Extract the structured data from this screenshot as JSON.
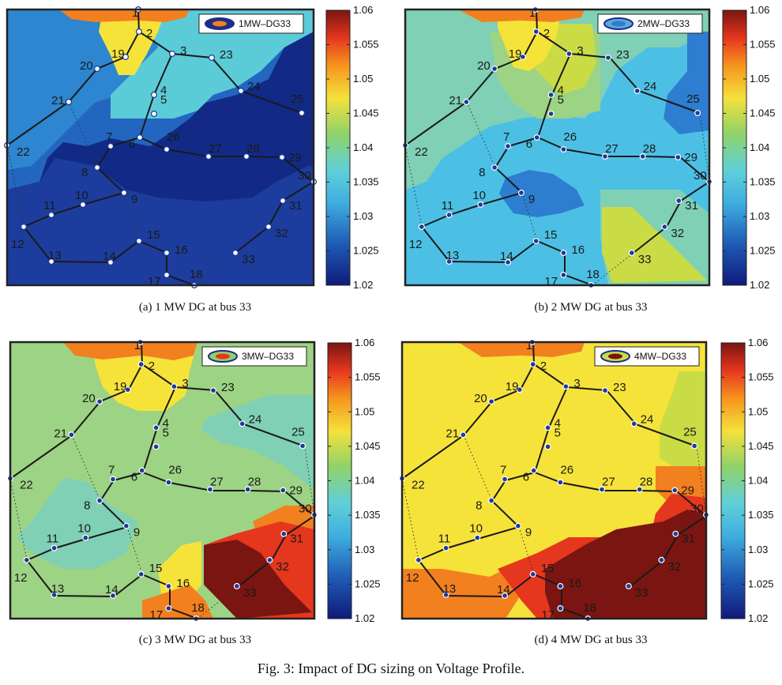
{
  "figure_caption": "Fig. 3: Impact of DG sizing on Voltage Profile.",
  "colorbar_ticks": [
    "1.06",
    "1.055",
    "1.05",
    "1.045",
    "1.04",
    "1.035",
    "1.03",
    "1.025",
    "1.02"
  ],
  "chart_data": [
    {
      "type": "heatmap",
      "panel": "a",
      "caption": "(a) 1 MW DG at bus 33",
      "legend": "1MW–DG33",
      "dg_size_mw": 1,
      "dg_bus": 33,
      "colorbar_range": [
        1.02,
        1.06
      ],
      "bus_labels": [
        "1",
        "2",
        "3",
        "4",
        "5",
        "6",
        "7",
        "8",
        "9",
        "10",
        "11",
        "12",
        "13",
        "14",
        "15",
        "16",
        "17",
        "18",
        "19",
        "20",
        "21",
        "22",
        "23",
        "24",
        "25",
        "26",
        "27",
        "28",
        "29",
        "30",
        "31",
        "32",
        "33"
      ],
      "voltage_levels_shown": [
        1.02,
        1.025,
        1.03,
        1.035,
        1.04,
        1.045,
        1.05
      ]
    },
    {
      "type": "heatmap",
      "panel": "b",
      "caption": "(b) 2 MW DG at bus 33",
      "legend": "2MW–DG33",
      "dg_size_mw": 2,
      "dg_bus": 33,
      "colorbar_range": [
        1.02,
        1.06
      ],
      "bus_labels": [
        "1",
        "2",
        "3",
        "4",
        "5",
        "6",
        "7",
        "8",
        "9",
        "10",
        "11",
        "12",
        "13",
        "14",
        "15",
        "16",
        "17",
        "18",
        "19",
        "20",
        "21",
        "22",
        "23",
        "24",
        "25",
        "26",
        "27",
        "28",
        "29",
        "30",
        "31",
        "32",
        "33"
      ],
      "voltage_levels_shown": [
        1.025,
        1.03,
        1.035,
        1.04,
        1.045,
        1.05
      ]
    },
    {
      "type": "heatmap",
      "panel": "c",
      "caption": "(c) 3 MW DG at bus 33",
      "legend": "3MW–DG33",
      "dg_size_mw": 3,
      "dg_bus": 33,
      "colorbar_range": [
        1.02,
        1.06
      ],
      "bus_labels": [
        "1",
        "2",
        "3",
        "4",
        "5",
        "6",
        "7",
        "8",
        "9",
        "10",
        "11",
        "12",
        "13",
        "14",
        "15",
        "16",
        "17",
        "18",
        "19",
        "20",
        "21",
        "22",
        "23",
        "24",
        "25",
        "26",
        "27",
        "28",
        "29",
        "30",
        "31",
        "32",
        "33"
      ],
      "voltage_levels_shown": [
        1.035,
        1.04,
        1.045,
        1.05,
        1.055,
        1.06
      ]
    },
    {
      "type": "heatmap",
      "panel": "d",
      "caption": "(d) 4 MW DG at bus 33",
      "legend": "4MW–DG33",
      "dg_size_mw": 4,
      "dg_bus": 33,
      "colorbar_range": [
        1.02,
        1.06
      ],
      "bus_labels": [
        "1",
        "2",
        "3",
        "4",
        "5",
        "6",
        "7",
        "8",
        "9",
        "10",
        "11",
        "12",
        "13",
        "14",
        "15",
        "16",
        "17",
        "18",
        "19",
        "20",
        "21",
        "22",
        "23",
        "24",
        "25",
        "26",
        "27",
        "28",
        "29",
        "30",
        "31",
        "32",
        "33"
      ],
      "voltage_levels_shown": [
        1.04,
        1.045,
        1.05,
        1.055,
        1.06
      ]
    }
  ]
}
